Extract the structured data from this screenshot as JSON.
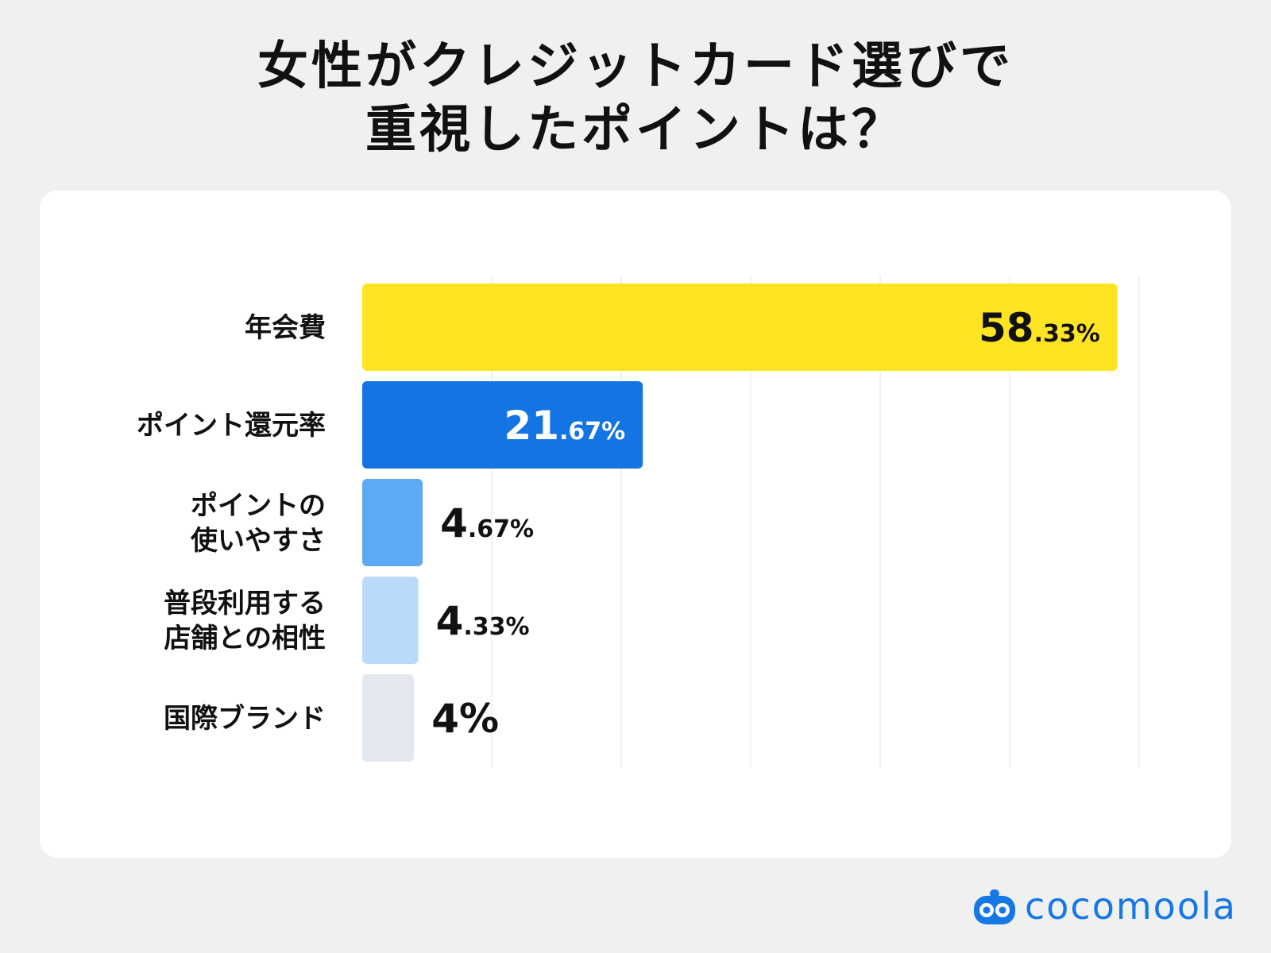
{
  "header": {
    "title_line1": "女性がクレジットカード選びで",
    "title_line2": "重視したポイントは？"
  },
  "brand": {
    "name": "cocomoola",
    "icon": "cocomoola-logo-icon",
    "color": "#1677e6"
  },
  "chart_data": {
    "type": "bar",
    "orientation": "horizontal",
    "title": "女性がクレジットカード選びで重視したポイントは？",
    "categories": [
      [
        "年会費"
      ],
      [
        "ポイント還元率"
      ],
      [
        "ポイントの",
        "使いやすさ"
      ],
      [
        "普段利用する",
        "店舗との相性"
      ],
      [
        "国際ブランド"
      ]
    ],
    "values": [
      58.33,
      21.67,
      4.67,
      4.33,
      4
    ],
    "value_labels": [
      {
        "int": "58",
        "dec": ".33%"
      },
      {
        "int": "21",
        "dec": ".67%"
      },
      {
        "int": "4",
        "dec": ".67%"
      },
      {
        "int": "4",
        "dec": ".33%"
      },
      {
        "int": "4%",
        "dec": ""
      }
    ],
    "colors": [
      "#ffe423",
      "#1474e4",
      "#5ea9f4",
      "#b9daf9",
      "#e3e8ee"
    ],
    "label_inside": [
      true,
      true,
      false,
      false,
      false
    ],
    "label_colors": [
      "#111111",
      "#ffffff",
      "#111111",
      "#111111",
      "#111111"
    ],
    "xlim": [
      0,
      60
    ],
    "grid": true,
    "legend": "none"
  }
}
